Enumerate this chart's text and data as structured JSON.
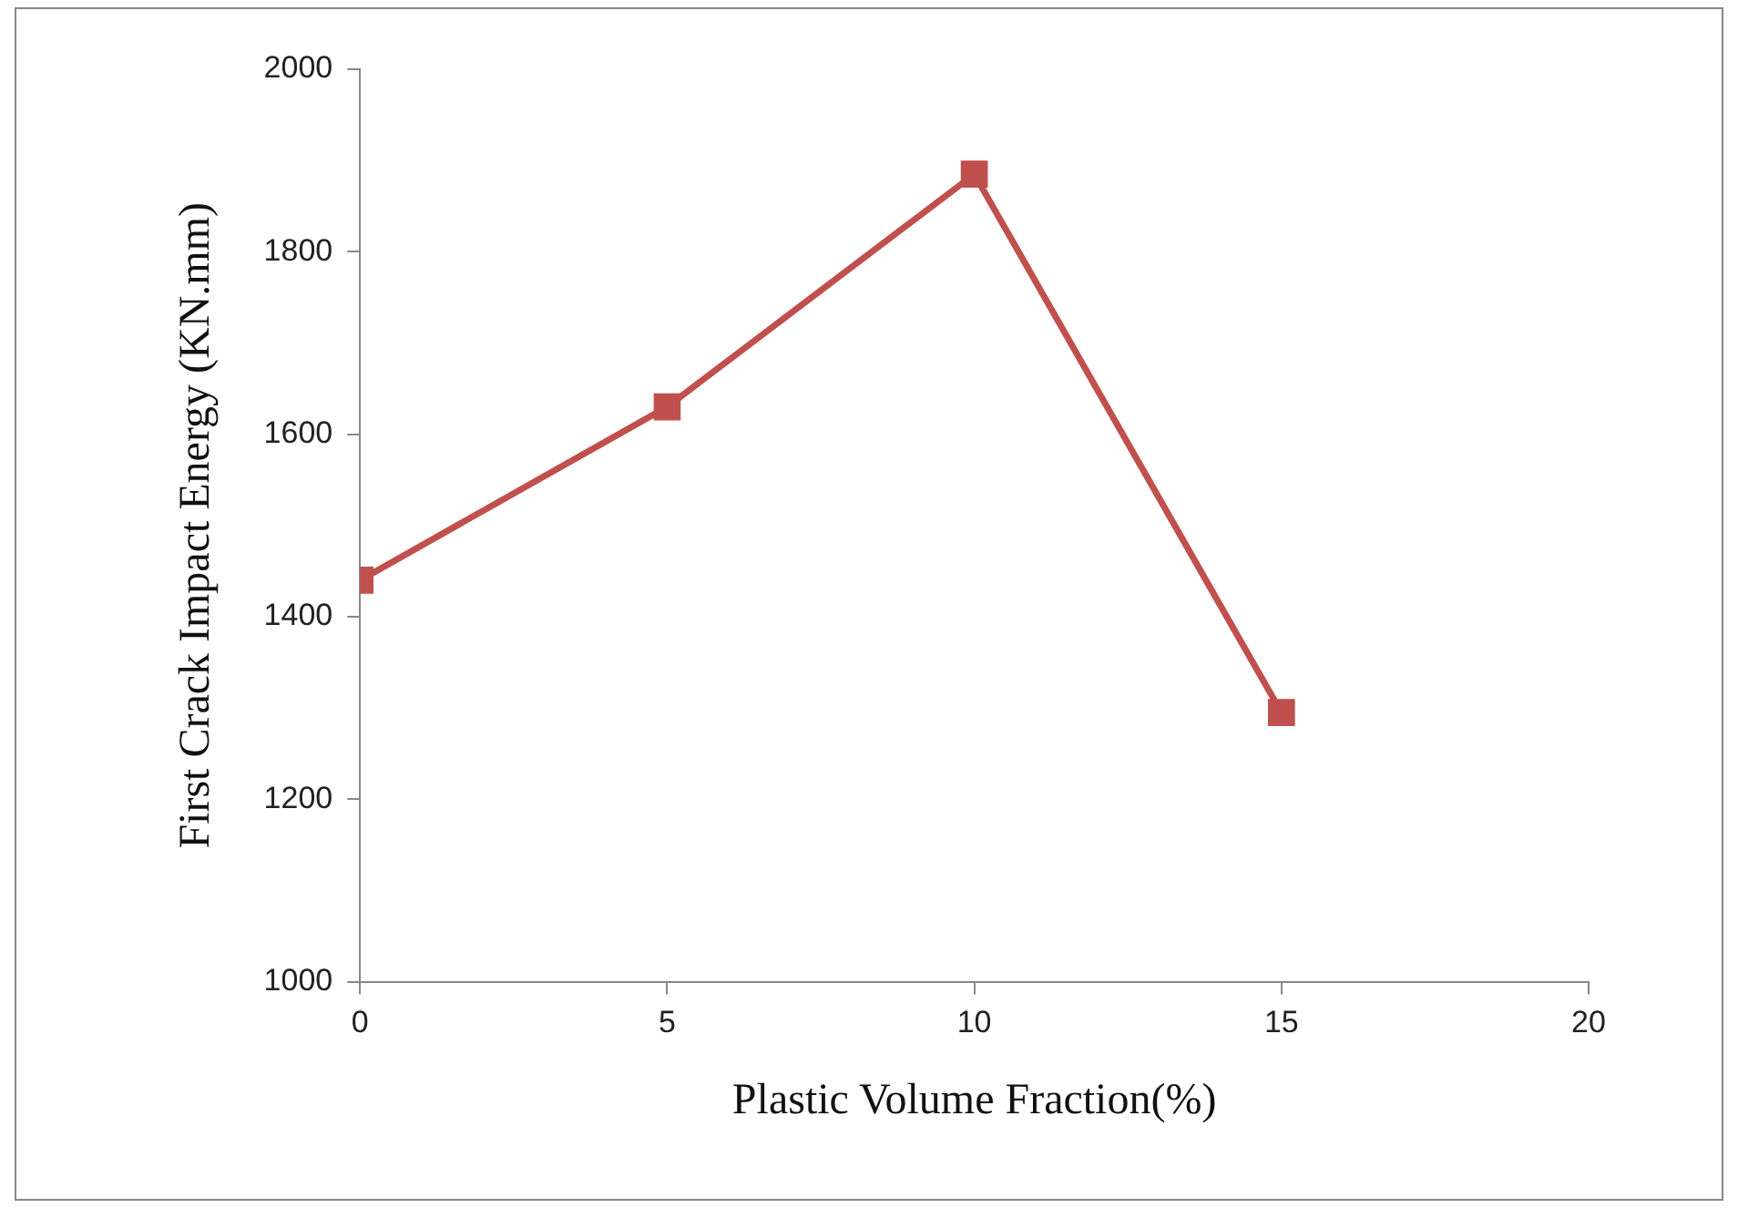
{
  "chart_data": {
    "type": "line",
    "xlabel": "Plastic Volume Fraction(%)",
    "ylabel": "First Crack Impact Energy (KN.mm)",
    "x": [
      0,
      5,
      10,
      15
    ],
    "series": [
      {
        "color": "#c0504d",
        "values": [
          1440,
          1630,
          1885,
          1295
        ]
      }
    ],
    "xlim": [
      0,
      20
    ],
    "xticks": [
      0,
      5,
      10,
      15,
      20
    ],
    "ylim": [
      1000,
      2000
    ],
    "yticks": [
      1000,
      1200,
      1400,
      1600,
      1800,
      2000
    ],
    "grid": false,
    "legend": false,
    "marker": "square",
    "line_style": "solid"
  }
}
